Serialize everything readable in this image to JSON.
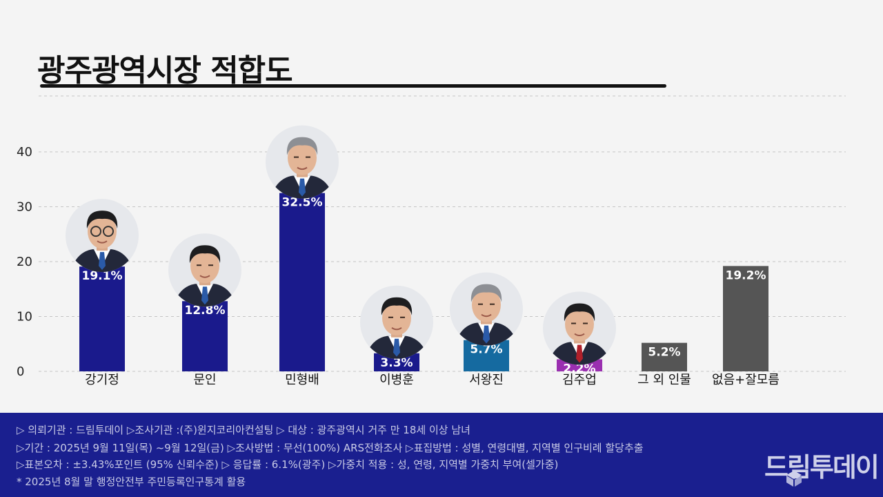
{
  "title": "광주광역시장 적합도",
  "chart_data": {
    "type": "bar",
    "title": "광주광역시장 적합도",
    "categories": [
      "강기정",
      "문인",
      "민형배",
      "이병훈",
      "서왕진",
      "김주업",
      "그 외 인물",
      "없음+잘모름"
    ],
    "values": [
      19.1,
      12.8,
      32.5,
      3.3,
      5.7,
      2.2,
      5.2,
      19.2
    ],
    "value_labels": [
      "19.1%",
      "12.8%",
      "32.5%",
      "3.3%",
      "5.7%",
      "2.2%",
      "5.2%",
      "19.2%"
    ],
    "bar_colors": [
      "#1a1a8c",
      "#1a1a8c",
      "#1a1a8c",
      "#1a1a8c",
      "#156aa0",
      "#9a2fb0",
      "#555555",
      "#555555"
    ],
    "photos": [
      true,
      true,
      true,
      true,
      true,
      true,
      false,
      false
    ],
    "yticks": [
      0,
      10,
      20,
      30,
      40
    ],
    "ylim": [
      0,
      40
    ],
    "grid": true,
    "xlabel": "",
    "ylabel": ""
  },
  "footer": {
    "line1": "▷ 의뢰기관 : 드림투데이  ▷조사기관 :(주)윈지코리아컨설팅  ▷ 대상 : 광주광역시 거주 만 18세 이상 남녀",
    "line2": "▷기간 : 2025년 9월 11일(목) ~9월 12일(금) ▷조사방법 : 무선(100%) ARS전화조사 ▷표집방법 : 성별, 연령대별, 지역별  인구비례 할당추출",
    "line3": "▷표본오차 :  ±3.43%포인트 (95% 신뢰수준)  ▷ 응답률 : 6.1%(광주) ▷가중치 적용 : 성, 연령, 지역별 가중치 부여(셀가중)",
    "line4": "* 2025년 8월 말 행정안전부 주민등록인구통계 활용"
  },
  "logo": "드림투데이"
}
